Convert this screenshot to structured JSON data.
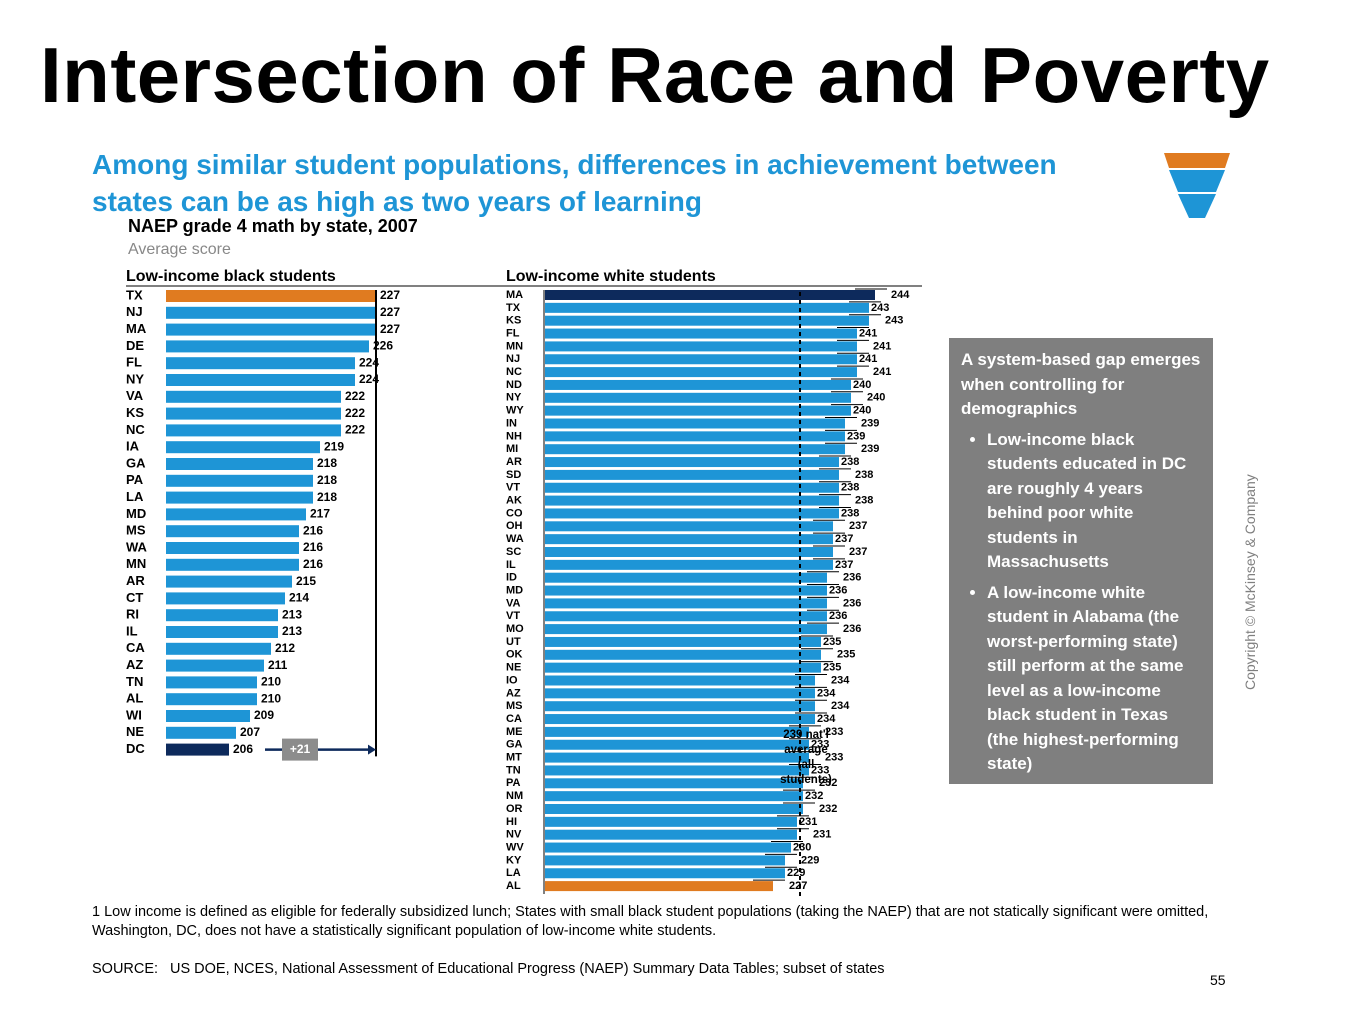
{
  "slide": {
    "title": "Intersection of Race and Poverty",
    "page_number": "55",
    "copyright": "Copyright © McKinsey & Company"
  },
  "headline": "Among similar student populations, differences in achievement between states can be as high as two years of learning",
  "funnel_icon": {
    "colors": [
      "#e07b20",
      "#1e95d6",
      "#1e95d6"
    ]
  },
  "callout": {
    "heading": "A system-based gap emerges when controlling for demographics",
    "bullets": [
      "Low-income black students educated in DC are roughly 4 years behind poor white students in Massachusetts",
      "A low-income white student in Alabama (the worst-performing state) still perform at the same level as a low-income black student in Texas (the highest-performing state)"
    ]
  },
  "footnote": "1 Low income is defined as eligible for federally subsidized lunch; States with small black student populations (taking the NAEP) that are not statically significant were omitted, Washington, DC, does not have a statistically significant population of low-income white students.",
  "source": {
    "label": "SOURCE:",
    "text": "US DOE, NCES, National Assessment of Educational Progress (NAEP) Summary Data Tables; subset of states"
  },
  "colors": {
    "bar": "#1e95d6",
    "highlight": "#e07b20",
    "dark": "#0d2a5c",
    "gap_label_bg": "#8c8c8c"
  },
  "chart_data": {
    "type": "bar",
    "title": "NAEP grade 4 math by state, 2007",
    "unit": "Average score",
    "national_average": {
      "value": 239,
      "label": [
        "239 nat'l",
        "average",
        "(all",
        "students)"
      ]
    },
    "gap_annotation": "+21",
    "panels": [
      {
        "name": "Low-income black students",
        "categories": [
          "TX",
          "NJ",
          "MA",
          "DE",
          "FL",
          "NY",
          "VA",
          "KS",
          "NC",
          "IA",
          "GA",
          "PA",
          "LA",
          "MD",
          "MS",
          "WA",
          "MN",
          "AR",
          "CT",
          "RI",
          "IL",
          "CA",
          "AZ",
          "TN",
          "AL",
          "WI",
          "NE",
          "DC"
        ],
        "values": [
          227,
          227,
          227,
          226,
          224,
          224,
          222,
          222,
          222,
          219,
          218,
          218,
          218,
          217,
          216,
          216,
          216,
          215,
          214,
          213,
          213,
          212,
          211,
          210,
          210,
          209,
          207,
          206
        ]
      },
      {
        "name": "Low-income white students",
        "categories": [
          "MA",
          "TX",
          "KS",
          "FL",
          "MN",
          "NJ",
          "NC",
          "ND",
          "NY",
          "WY",
          "IN",
          "NH",
          "MI",
          "AR",
          "SD",
          "VT",
          "AK",
          "CO",
          "OH",
          "WA",
          "SC",
          "IL",
          "ID",
          "MD",
          "VA",
          "VT",
          "MO",
          "UT",
          "OK",
          "NE",
          "IO",
          "AZ",
          "MS",
          "CA",
          "ME",
          "GA",
          "MT",
          "TN",
          "PA",
          "NM",
          "OR",
          "HI",
          "NV",
          "WV",
          "KY",
          "LA",
          "AL"
        ],
        "values": [
          244,
          243,
          243,
          241,
          241,
          241,
          241,
          240,
          240,
          240,
          239,
          239,
          239,
          238,
          238,
          238,
          238,
          238,
          237,
          237,
          237,
          237,
          236,
          236,
          236,
          236,
          236,
          235,
          235,
          235,
          234,
          234,
          234,
          234,
          233,
          233,
          233,
          233,
          232,
          232,
          232,
          231,
          231,
          230,
          229,
          229,
          227
        ]
      }
    ]
  }
}
